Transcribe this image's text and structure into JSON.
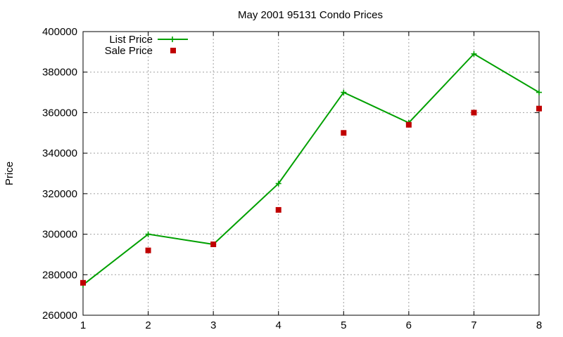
{
  "chart_data": {
    "type": "line",
    "title": "May 2001 95131 Condo Prices",
    "xlabel": "",
    "ylabel": "Price",
    "xlim": [
      1,
      8
    ],
    "ylim": [
      260000,
      400000
    ],
    "x_ticks": [
      "1",
      "2",
      "3",
      "4",
      "5",
      "6",
      "7",
      "8"
    ],
    "y_ticks": [
      "260000",
      "280000",
      "300000",
      "320000",
      "340000",
      "360000",
      "380000",
      "400000"
    ],
    "grid": true,
    "legend_position": "top-left",
    "x": [
      1,
      2,
      3,
      4,
      5,
      6,
      7,
      8
    ],
    "series": [
      {
        "name": "List Price",
        "style": "line+cross",
        "color": "#00a000",
        "values": [
          275000,
          300000,
          295000,
          325000,
          370000,
          355000,
          389000,
          370000
        ]
      },
      {
        "name": "Sale Price",
        "style": "square-points",
        "color": "#c00000",
        "values": [
          276000,
          292000,
          295000,
          312000,
          350000,
          354000,
          360000,
          362000
        ]
      }
    ]
  }
}
